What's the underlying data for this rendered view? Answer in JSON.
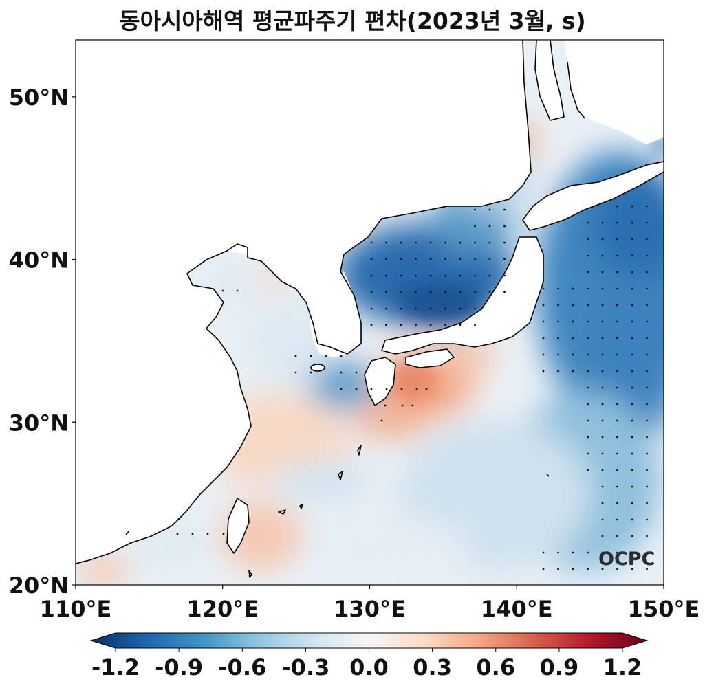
{
  "title": "동아시아해역 평균파주기 편차(2023년 3월, s)",
  "logo": "OCPC",
  "map": {
    "lon_range": [
      110,
      150
    ],
    "lat_range": [
      20,
      53.5
    ],
    "x_ticks": [
      {
        "value": 110,
        "label": "110°E"
      },
      {
        "value": 120,
        "label": "120°E"
      },
      {
        "value": 130,
        "label": "130°E"
      },
      {
        "value": 140,
        "label": "140°E"
      },
      {
        "value": 150,
        "label": "150°E"
      }
    ],
    "y_ticks": [
      {
        "value": 20,
        "label": "20°N"
      },
      {
        "value": 30,
        "label": "30°N"
      },
      {
        "value": 40,
        "label": "40°N"
      },
      {
        "value": 50,
        "label": "50°N"
      }
    ]
  },
  "colorbar": {
    "min": -1.35,
    "max": 1.35,
    "ticks": [
      {
        "value": -1.2,
        "label": "-1.2"
      },
      {
        "value": -0.9,
        "label": "-0.9"
      },
      {
        "value": -0.6,
        "label": "-0.6"
      },
      {
        "value": -0.3,
        "label": "-0.3"
      },
      {
        "value": 0.0,
        "label": "0.0"
      },
      {
        "value": 0.3,
        "label": "0.3"
      },
      {
        "value": 0.6,
        "label": "0.6"
      },
      {
        "value": 0.9,
        "label": "0.9"
      },
      {
        "value": 1.2,
        "label": "1.2"
      }
    ],
    "colors": [
      "#053061",
      "#2166ac",
      "#4393c3",
      "#92c5de",
      "#d1e5f0",
      "#f7f7f7",
      "#fddbc7",
      "#f4a582",
      "#d6604d",
      "#b2182b",
      "#67001f"
    ]
  },
  "colors": {
    "land": "#ffffff",
    "coastline": "#000000",
    "neutral_sea": "#eef3f7"
  }
}
